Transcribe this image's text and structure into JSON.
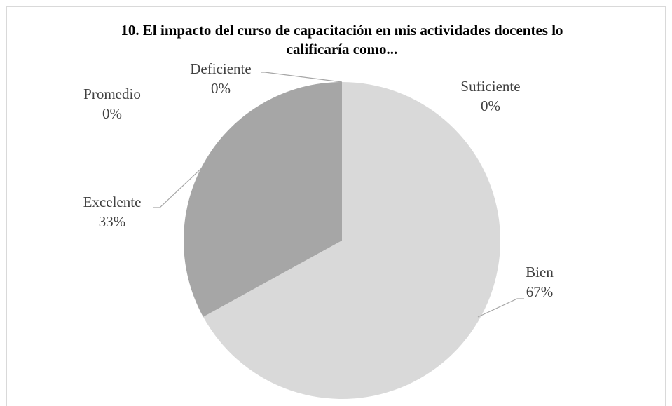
{
  "chart_data": {
    "type": "pie",
    "title": "10. El impacto del curso de capacitación en mis actividades docentes lo califícaría como...",
    "title_lines": [
      "10. El impacto del curso de capacitación en mis actividades docentes lo",
      "calificaría como..."
    ],
    "categories": [
      "Suficiente",
      "Bien",
      "Excelente",
      "Promedio",
      "Deficiente"
    ],
    "values": [
      0,
      67,
      33,
      0,
      0
    ],
    "value_labels": [
      "0%",
      "67%",
      "33%",
      "0%",
      "0%"
    ],
    "colors": [
      "#bfbfbf",
      "#d9d9d9",
      "#a6a6a6",
      "#8c8c8c",
      "#7f7f7f"
    ]
  }
}
